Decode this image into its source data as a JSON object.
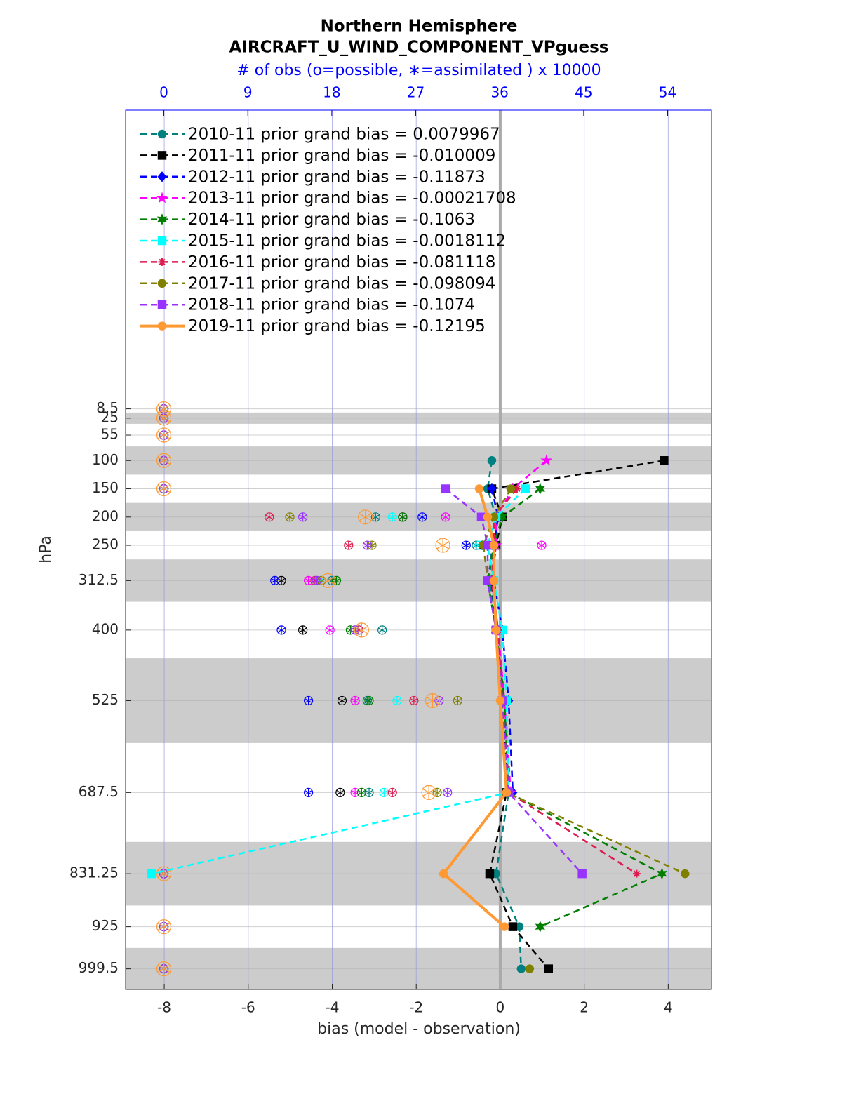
{
  "chart_data": {
    "type": "profile",
    "title": "Northern Hemisphere",
    "subtitle": "AIRCRAFT_U_WIND_COMPONENT_VPguess",
    "x2_label": "# of obs (o=possible, ∗=assimilated ) x 10000",
    "xlabel": "bias (model - observation)",
    "ylabel": "hPa",
    "levels": [
      8.5,
      25,
      55,
      100,
      150,
      200,
      250,
      312.5,
      400,
      525,
      687.5,
      831.25,
      925,
      999.5
    ],
    "xlim": [
      -8.92,
      5.03
    ],
    "xticks": [
      -8,
      -6,
      -4,
      -2,
      0,
      2,
      4
    ],
    "x2lim": [
      -4.1,
      58.7
    ],
    "x2ticks": [
      0,
      9,
      18,
      27,
      36,
      45,
      54
    ],
    "ylim": [
      -520,
      1036
    ],
    "y_reversed": true,
    "yticks": [
      8.5,
      25,
      55,
      100,
      150,
      200,
      250,
      312.5,
      400,
      525,
      687.5,
      831.25,
      925,
      999.5
    ],
    "shaded_layers": [
      [
        15,
        35
      ],
      [
        75,
        125
      ],
      [
        175,
        225
      ],
      [
        275,
        350
      ],
      [
        450,
        600
      ],
      [
        775,
        887.5
      ],
      [
        962.5,
        1036
      ]
    ],
    "grid": true,
    "legend": "upper left",
    "series": [
      {
        "name": "2010-11 prior grand bias = 0.0079967",
        "color": "#008080",
        "marker": "circle",
        "line_style": "dashed",
        "values": [
          null,
          null,
          null,
          -0.2,
          -0.3,
          -0.1,
          -0.2,
          -0.25,
          -0.1,
          0.1,
          0.2,
          -0.1,
          0.45,
          0.5
        ],
        "nobs": [
          0,
          0,
          0,
          0,
          0,
          22.7,
          33.5,
          18,
          23.4,
          21.8,
          22,
          0,
          0,
          0
        ]
      },
      {
        "name": "2011-11 prior grand bias = -0.010009",
        "color": "#000000",
        "marker": "square",
        "line_style": "dashed",
        "values": [
          null,
          null,
          null,
          3.9,
          -0.2,
          0.05,
          -0.1,
          -0.2,
          -0.1,
          0.1,
          0.15,
          -0.25,
          0.3,
          1.15
        ],
        "nobs": [
          0,
          0,
          0,
          0,
          0,
          25.6,
          34.2,
          12.6,
          14.9,
          19.1,
          18.9,
          0,
          0,
          0
        ]
      },
      {
        "name": "2012-11 prior grand bias = -0.11873",
        "color": "#0000ff",
        "marker": "diamond",
        "line_style": "dashed",
        "values": [
          null,
          null,
          null,
          null,
          -0.2,
          -0.05,
          -0.15,
          -0.15,
          0.05,
          0.2,
          0.3,
          null,
          null,
          null
        ],
        "nobs": [
          0,
          0,
          0,
          0,
          0,
          27.7,
          32.4,
          11.9,
          12.6,
          15.5,
          15.5,
          0,
          0,
          0
        ]
      },
      {
        "name": "2013-11 prior grand bias = -0.00021708",
        "color": "#ff00ff",
        "marker": "star",
        "line_style": "dashed",
        "values": [
          null,
          null,
          null,
          1.1,
          0.3,
          -0.1,
          -0.1,
          -0.2,
          -0.05,
          0.1,
          0.25,
          null,
          null,
          null
        ],
        "nobs": [
          0,
          0,
          0,
          0,
          0,
          30.2,
          40.5,
          15.5,
          17.8,
          20.5,
          20.5,
          0,
          0,
          0
        ]
      },
      {
        "name": "2014-11 prior grand bias = -0.1063",
        "color": "#007f00",
        "marker": "hexagram",
        "line_style": "dashed",
        "values": [
          null,
          null,
          null,
          null,
          0.95,
          0.05,
          -0.15,
          -0.3,
          -0.1,
          0.1,
          0.2,
          3.85,
          0.95,
          null
        ],
        "nobs": [
          0,
          0,
          0,
          0,
          0,
          25.6,
          34.7,
          18.5,
          20,
          22,
          21.2,
          0,
          0,
          0
        ]
      },
      {
        "name": "2015-11 prior grand bias = -0.0018112",
        "color": "#00ffff",
        "marker": "square",
        "line_style": "dashed",
        "values": [
          null,
          null,
          null,
          null,
          0.6,
          -0.1,
          -0.3,
          -0.15,
          0.05,
          0.15,
          0.2,
          -8.3,
          null,
          null
        ],
        "nobs": [
          0,
          0,
          0,
          0,
          0,
          24.5,
          33.8,
          16.7,
          20.9,
          25,
          23.6,
          0,
          0,
          0
        ]
      },
      {
        "name": "2016-11 prior grand bias = -0.081118",
        "color": "#de1a4f",
        "marker": "asterisk",
        "line_style": "dashed",
        "values": [
          null,
          null,
          null,
          null,
          0.4,
          -0.15,
          -0.15,
          -0.2,
          -0.05,
          0.05,
          0.2,
          3.25,
          null,
          null
        ],
        "nobs": [
          0,
          0,
          0,
          0,
          0,
          11.3,
          19.8,
          16.2,
          20.9,
          26.8,
          24.5,
          0,
          0,
          0
        ]
      },
      {
        "name": "2017-11 prior grand bias = -0.098094",
        "color": "#808000",
        "marker": "circle",
        "line_style": "dashed",
        "values": [
          null,
          null,
          null,
          null,
          0.25,
          -0.15,
          -0.4,
          -0.3,
          -0.1,
          0.05,
          0.15,
          4.4,
          null,
          0.7
        ],
        "nobs": [
          0,
          0,
          0,
          0,
          0,
          13.5,
          22.3,
          16.9,
          20.5,
          31.5,
          29.3,
          0,
          0,
          0
        ]
      },
      {
        "name": "2018-11 prior grand bias = -0.1074",
        "color": "#9933ff",
        "marker": "square",
        "line_style": "dashed",
        "values": [
          null,
          null,
          null,
          null,
          -1.3,
          -0.45,
          -0.3,
          -0.3,
          -0.1,
          0.05,
          0.2,
          1.95,
          null,
          null
        ],
        "nobs": [
          0,
          0,
          0,
          0,
          0,
          14.9,
          21.8,
          16.4,
          20.5,
          29.5,
          30.4,
          0,
          0,
          0
        ]
      },
      {
        "name": "2019-11 prior grand bias = -0.12195",
        "color": "#ff9933",
        "marker": "circle",
        "line_style": "solid",
        "values": [
          null,
          null,
          null,
          null,
          -0.5,
          -0.3,
          -0.15,
          -0.15,
          -0.1,
          0,
          0.15,
          -1.35,
          0.1,
          null
        ],
        "nobs": [
          0,
          0,
          0,
          0,
          0,
          21.6,
          29.9,
          17.6,
          21.2,
          28.8,
          28.4,
          0,
          0,
          0
        ]
      }
    ]
  }
}
